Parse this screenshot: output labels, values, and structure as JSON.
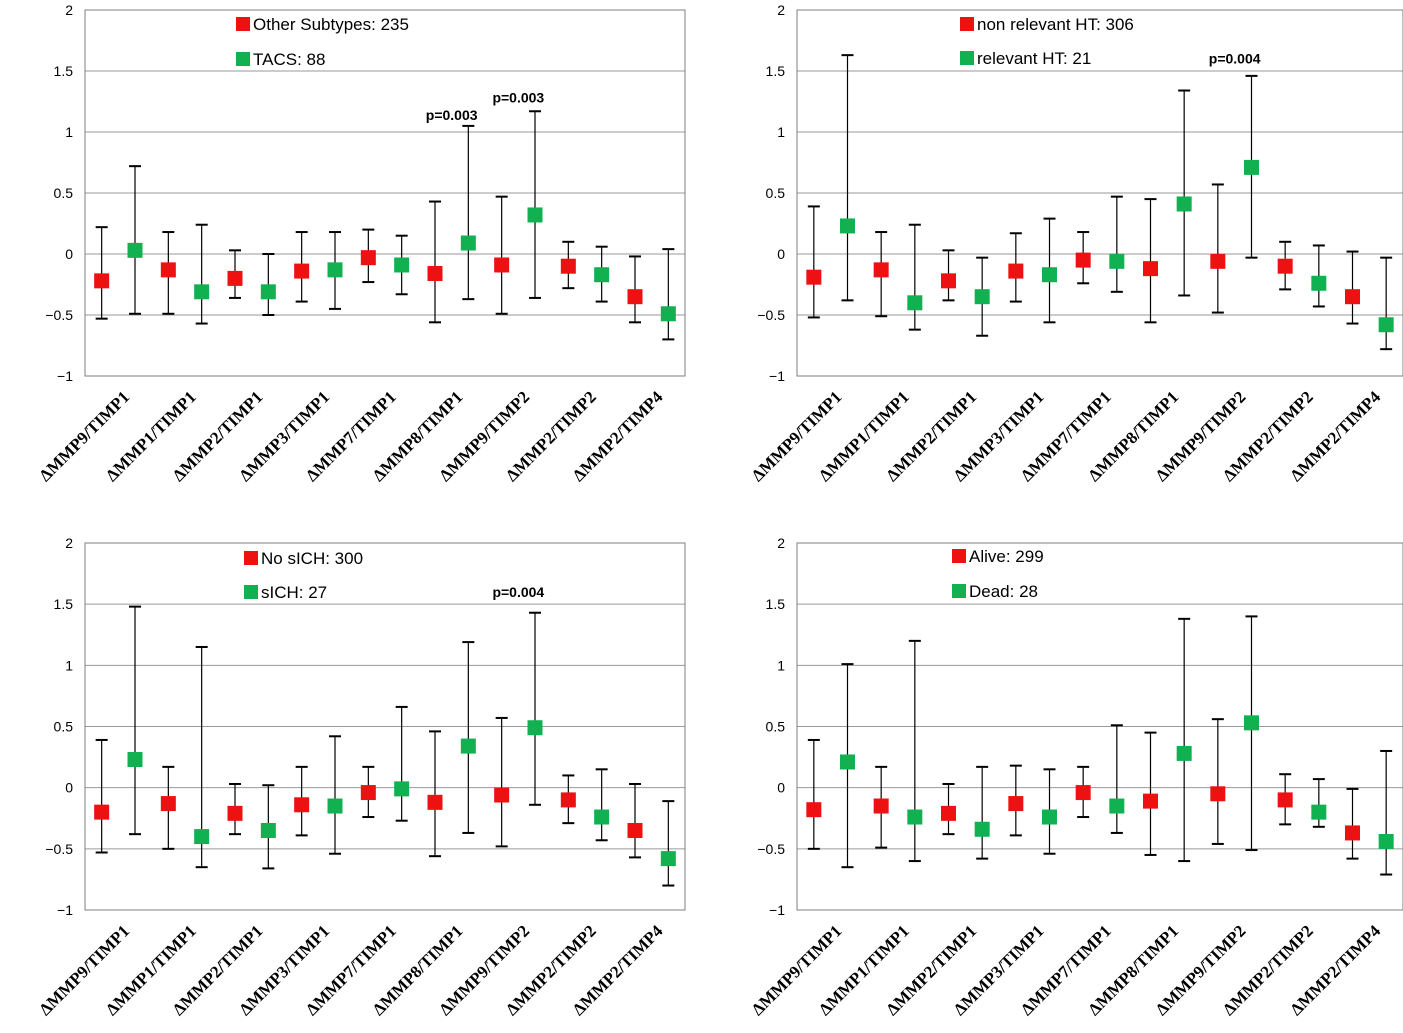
{
  "chart_data": [
    {
      "type": "scatter",
      "subtype": "error-bar-comparison",
      "title": "",
      "ylim": [
        -1,
        2
      ],
      "yticks": [
        "2",
        "1.5",
        "1",
        "0.5",
        "0",
        "−0.5",
        "−1"
      ],
      "categories": [
        "ΔMMP9/TIMP1",
        "ΔMMP1/TIMP1",
        "ΔMMP2/TIMP1",
        "ΔMMP3/TIMP1",
        "ΔMMP7/TIMP1",
        "ΔMMP8/TIMP1",
        "ΔMMP9/TIMP2",
        "ΔMMP2/TIMP2",
        "ΔMMP2/TIMP4"
      ],
      "series": [
        {
          "name": "Other Subtypes: 235",
          "color": "#ee1111",
          "values": [
            -0.22,
            -0.13,
            -0.2,
            -0.14,
            -0.03,
            -0.16,
            -0.09,
            -0.1,
            -0.35
          ],
          "lower": [
            -0.53,
            -0.49,
            -0.36,
            -0.39,
            -0.23,
            -0.56,
            -0.49,
            -0.28,
            -0.56
          ],
          "upper": [
            0.22,
            0.18,
            0.03,
            0.18,
            0.2,
            0.43,
            0.47,
            0.1,
            -0.02
          ]
        },
        {
          "name": "TACS: 88",
          "color": "#11b050",
          "values": [
            0.03,
            -0.31,
            -0.31,
            -0.13,
            -0.09,
            0.09,
            0.32,
            -0.17,
            -0.49
          ],
          "lower": [
            -0.49,
            -0.57,
            -0.5,
            -0.45,
            -0.33,
            -0.37,
            -0.36,
            -0.39,
            -0.7
          ],
          "upper": [
            0.72,
            0.24,
            0.0,
            0.18,
            0.15,
            1.05,
            1.17,
            0.06,
            0.04
          ]
        }
      ],
      "annotations": [
        {
          "category": "ΔMMP8/TIMP1",
          "text": "p=0.003",
          "y": 1.1
        },
        {
          "category": "ΔMMP9/TIMP2",
          "text": "p=0.003",
          "y": 1.24
        }
      ],
      "legend": "top-center"
    },
    {
      "type": "scatter",
      "subtype": "error-bar-comparison",
      "title": "",
      "ylim": [
        -1,
        2
      ],
      "yticks": [
        "2",
        "1.5",
        "1",
        "0.5",
        "0",
        "−0.5",
        "−1"
      ],
      "categories": [
        "ΔMMP9/TIMP1",
        "ΔMMP1/TIMP1",
        "ΔMMP2/TIMP1",
        "ΔMMP3/TIMP1",
        "ΔMMP7/TIMP1",
        "ΔMMP8/TIMP1",
        "ΔMMP9/TIMP2",
        "ΔMMP2/TIMP2",
        "ΔMMP2/TIMP4"
      ],
      "series": [
        {
          "name": "non relevant HT: 306",
          "color": "#ee1111",
          "values": [
            -0.19,
            -0.13,
            -0.22,
            -0.14,
            -0.05,
            -0.12,
            -0.06,
            -0.1,
            -0.35
          ],
          "lower": [
            -0.52,
            -0.51,
            -0.38,
            -0.39,
            -0.24,
            -0.56,
            -0.48,
            -0.29,
            -0.57
          ],
          "upper": [
            0.39,
            0.18,
            0.03,
            0.17,
            0.18,
            0.45,
            0.57,
            0.1,
            0.02
          ]
        },
        {
          "name": "relevant HT: 21",
          "color": "#11b050",
          "values": [
            0.23,
            -0.4,
            -0.35,
            -0.17,
            -0.06,
            0.41,
            0.71,
            -0.24,
            -0.58
          ],
          "lower": [
            -0.38,
            -0.62,
            -0.67,
            -0.56,
            -0.31,
            -0.34,
            -0.03,
            -0.43,
            -0.78
          ],
          "upper": [
            1.63,
            0.24,
            -0.03,
            0.29,
            0.47,
            1.34,
            1.46,
            0.07,
            -0.03
          ]
        }
      ],
      "annotations": [
        {
          "category": "ΔMMP9/TIMP2",
          "text": "p=0.004",
          "y": 1.56
        }
      ],
      "legend": "top-center"
    },
    {
      "type": "scatter",
      "subtype": "error-bar-comparison",
      "title": "",
      "ylim": [
        -1,
        2
      ],
      "yticks": [
        "2",
        "1.5",
        "1",
        "0.5",
        "0",
        "−0.5",
        "−1"
      ],
      "categories": [
        "ΔMMP9/TIMP1",
        "ΔMMP1/TIMP1",
        "ΔMMP2/TIMP1",
        "ΔMMP3/TIMP1",
        "ΔMMP7/TIMP1",
        "ΔMMP8/TIMP1",
        "ΔMMP9/TIMP2",
        "ΔMMP2/TIMP2",
        "ΔMMP2/TIMP4"
      ],
      "series": [
        {
          "name": "No sICH: 300",
          "color": "#ee1111",
          "values": [
            -0.2,
            -0.13,
            -0.21,
            -0.14,
            -0.04,
            -0.12,
            -0.06,
            -0.1,
            -0.35
          ],
          "lower": [
            -0.53,
            -0.5,
            -0.38,
            -0.39,
            -0.24,
            -0.56,
            -0.48,
            -0.29,
            -0.57
          ],
          "upper": [
            0.39,
            0.17,
            0.03,
            0.17,
            0.17,
            0.46,
            0.57,
            0.1,
            0.03
          ]
        },
        {
          "name": "sICH: 27",
          "color": "#11b050",
          "values": [
            0.23,
            -0.4,
            -0.35,
            -0.15,
            -0.01,
            0.34,
            0.49,
            -0.24,
            -0.58
          ],
          "lower": [
            -0.38,
            -0.65,
            -0.66,
            -0.54,
            -0.27,
            -0.37,
            -0.14,
            -0.43,
            -0.8
          ],
          "upper": [
            1.48,
            1.15,
            0.02,
            0.42,
            0.66,
            1.19,
            1.43,
            0.15,
            -0.11
          ]
        }
      ],
      "annotations": [
        {
          "category": "ΔMMP9/TIMP2",
          "text": "p=0.004",
          "y": 1.56
        }
      ],
      "legend": "top-center"
    },
    {
      "type": "scatter",
      "subtype": "error-bar-comparison",
      "title": "",
      "ylim": [
        -1,
        2
      ],
      "yticks": [
        "2",
        "1.5",
        "1",
        "0.5",
        "0",
        "−0.5",
        "−1"
      ],
      "categories": [
        "ΔMMP9/TIMP1",
        "ΔMMP1/TIMP1",
        "ΔMMP2/TIMP1",
        "ΔMMP3/TIMP1",
        "ΔMMP7/TIMP1",
        "ΔMMP8/TIMP1",
        "ΔMMP9/TIMP2",
        "ΔMMP2/TIMP2",
        "ΔMMP2/TIMP4"
      ],
      "series": [
        {
          "name": "Alive: 299",
          "color": "#ee1111",
          "values": [
            -0.18,
            -0.15,
            -0.21,
            -0.13,
            -0.04,
            -0.11,
            -0.05,
            -0.1,
            -0.37
          ],
          "lower": [
            -0.5,
            -0.49,
            -0.38,
            -0.39,
            -0.24,
            -0.55,
            -0.46,
            -0.3,
            -0.58
          ],
          "upper": [
            0.39,
            0.17,
            0.03,
            0.18,
            0.17,
            0.45,
            0.56,
            0.11,
            -0.01
          ]
        },
        {
          "name": "Dead: 28",
          "color": "#11b050",
          "values": [
            0.21,
            -0.24,
            -0.34,
            -0.24,
            -0.15,
            0.28,
            0.53,
            -0.2,
            -0.44
          ],
          "lower": [
            -0.65,
            -0.6,
            -0.58,
            -0.54,
            -0.37,
            -0.6,
            -0.51,
            -0.32,
            -0.71
          ],
          "upper": [
            1.01,
            1.2,
            0.17,
            0.15,
            0.51,
            1.38,
            1.4,
            0.07,
            0.3
          ]
        }
      ],
      "annotations": [],
      "legend": "top-center"
    }
  ]
}
